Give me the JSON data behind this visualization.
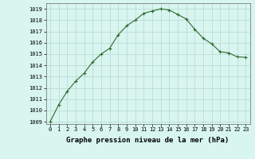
{
  "x": [
    0,
    1,
    2,
    3,
    4,
    5,
    6,
    7,
    8,
    9,
    10,
    11,
    12,
    13,
    14,
    15,
    16,
    17,
    18,
    19,
    20,
    21,
    22,
    23
  ],
  "y": [
    1009.0,
    1010.5,
    1011.7,
    1012.6,
    1013.3,
    1014.3,
    1015.0,
    1015.5,
    1016.7,
    1017.5,
    1018.0,
    1018.6,
    1018.8,
    1019.0,
    1018.9,
    1018.5,
    1018.1,
    1017.2,
    1016.4,
    1015.9,
    1015.2,
    1015.1,
    1014.75,
    1014.7
  ],
  "line_color": "#2d6a2d",
  "marker": "+",
  "marker_size": 3,
  "marker_linewidth": 0.8,
  "bg_color": "#d8f5f0",
  "grid_color": "#b8d8d0",
  "xlabel": "Graphe pression niveau de la mer (hPa)",
  "xlabel_fontsize": 6.5,
  "ylabel_ticks": [
    1009,
    1010,
    1011,
    1012,
    1013,
    1014,
    1015,
    1016,
    1017,
    1018,
    1019
  ],
  "xlim": [
    -0.5,
    23.5
  ],
  "ylim": [
    1008.8,
    1019.5
  ],
  "xticks": [
    0,
    1,
    2,
    3,
    4,
    5,
    6,
    7,
    8,
    9,
    10,
    11,
    12,
    13,
    14,
    15,
    16,
    17,
    18,
    19,
    20,
    21,
    22,
    23
  ],
  "tick_fontsize": 5.0,
  "line_width": 0.8
}
